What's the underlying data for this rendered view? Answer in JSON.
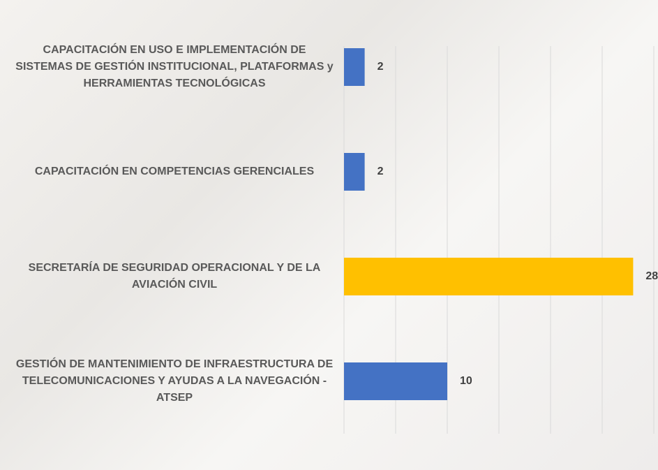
{
  "chart_data": {
    "type": "bar",
    "orientation": "horizontal",
    "categories": [
      "CAPACITACIÓN EN USO E IMPLEMENTACIÓN DE SISTEMAS DE GESTIÓN INSTITUCIONAL, PLATAFORMAS y HERRAMIENTAS TECNOLÓGICAS",
      "CAPACITACIÓN EN COMPETENCIAS GERENCIALES",
      "SECRETARÍA DE SEGURIDAD OPERACIONAL Y DE LA AVIACIÓN CIVIL",
      "GESTIÓN DE MANTENIMIENTO DE INFRAESTRUCTURA DE TELECOMUNICACIONES Y AYUDAS A LA NAVEGACIÓN - ATSEP"
    ],
    "values": [
      2,
      2,
      28,
      10
    ],
    "colors": [
      "#4472c4",
      "#4472c4",
      "#ffc000",
      "#4472c4"
    ],
    "xlim": [
      0,
      30
    ],
    "xticks": [
      0,
      5,
      10,
      15,
      20,
      25,
      30
    ],
    "grid": true
  }
}
